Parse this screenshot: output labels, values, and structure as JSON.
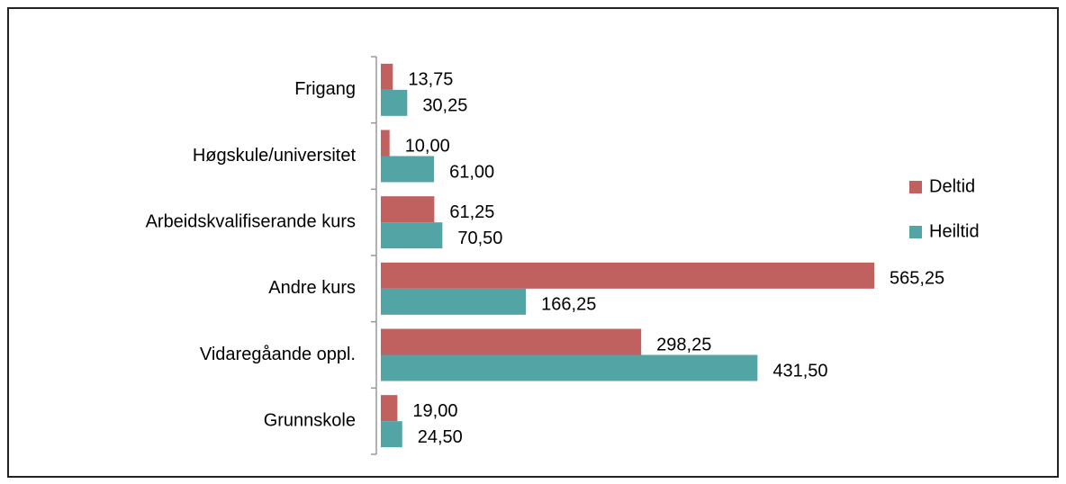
{
  "chart_data": {
    "type": "bar",
    "orientation": "horizontal",
    "categories": [
      "Frigang",
      "Høgskule/universitet",
      "Arbeidskvalifiserande kurs",
      "Andre kurs",
      "Vidaregåande oppl.",
      "Grunnskole"
    ],
    "series": [
      {
        "name": "Deltid",
        "color": "#c0605f",
        "values": [
          13.75,
          10,
          61.25,
          565.25,
          298.25,
          19
        ],
        "value_labels": [
          "13,75",
          "10,00",
          "61,25",
          "565,25",
          "298,25",
          "19,00"
        ]
      },
      {
        "name": "Heiltid",
        "color": "#52a5a4",
        "values": [
          30.25,
          61,
          70.5,
          166.25,
          431.5,
          24.5
        ],
        "value_labels": [
          "30,25",
          "61,00",
          "70,50",
          "166,25",
          "431,50",
          "24,50"
        ]
      }
    ],
    "legend": "right"
  }
}
